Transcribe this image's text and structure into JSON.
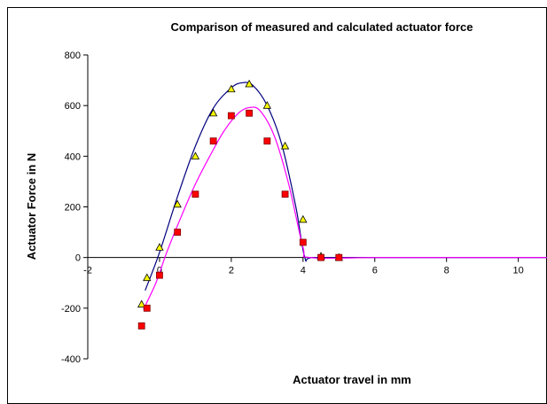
{
  "chart_data": {
    "type": "scatter",
    "title": "Comparison of measured and calculated actuator force",
    "xlabel": "Actuator travel in mm",
    "ylabel": "Actuator Force in N",
    "xlim": [
      -2,
      10.8
    ],
    "ylim": [
      -400,
      800
    ],
    "x_ticks": [
      "-2",
      "0",
      "2",
      "4",
      "6",
      "8",
      "10"
    ],
    "y_ticks": [
      "-400",
      "-200",
      "0",
      "200",
      "400",
      "600",
      "800"
    ],
    "grid": false,
    "legend": "none",
    "series": [
      {
        "kind": "points",
        "marker": "triangle",
        "color": "#ffff00",
        "x": [
          -0.5,
          -0.35,
          0.0,
          0.5,
          1.0,
          1.5,
          2.0,
          2.5,
          3.0,
          3.5,
          4.0,
          4.5,
          5.0
        ],
        "y": [
          -185,
          -80,
          40,
          210,
          400,
          570,
          665,
          685,
          600,
          440,
          150,
          5,
          0
        ]
      },
      {
        "kind": "points",
        "marker": "square",
        "color": "#ff0000",
        "x": [
          -0.5,
          -0.35,
          0.0,
          0.5,
          1.0,
          1.5,
          2.0,
          2.5,
          3.0,
          3.5,
          4.0,
          4.5,
          5.0
        ],
        "y": [
          -270,
          -200,
          -70,
          100,
          250,
          460,
          560,
          570,
          460,
          250,
          60,
          0,
          0
        ]
      },
      {
        "kind": "line",
        "color": "#00007f",
        "x": [
          -0.4,
          0.0,
          0.5,
          1.0,
          1.5,
          2.0,
          2.3,
          2.6,
          3.0,
          3.4,
          3.8,
          4.05,
          4.3,
          6.0,
          8.0,
          10.8
        ],
        "y": [
          -130,
          20,
          240,
          440,
          590,
          670,
          690,
          680,
          600,
          450,
          200,
          0,
          0,
          0,
          0,
          0
        ]
      },
      {
        "kind": "line",
        "color": "#ff00ff",
        "x": [
          -0.45,
          -0.1,
          0.2,
          0.6,
          1.0,
          1.4,
          1.8,
          2.2,
          2.5,
          2.8,
          3.2,
          3.6,
          4.0,
          4.2,
          6.0,
          8.0,
          10.8
        ],
        "y": [
          -205,
          -100,
          20,
          160,
          290,
          400,
          500,
          570,
          592,
          580,
          480,
          290,
          40,
          0,
          0,
          0,
          0
        ]
      }
    ]
  }
}
